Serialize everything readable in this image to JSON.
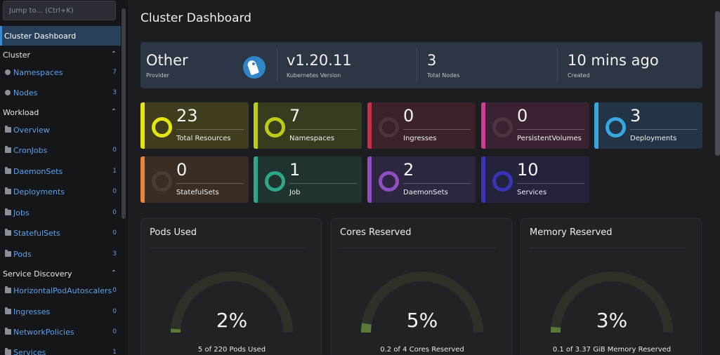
{
  "sidebar": {
    "jump_placeholder": "Jump to... (Ctrl+K)",
    "active_item": "Cluster Dashboard",
    "groups": [
      {
        "label": "Cluster",
        "caret": "⌃"
      },
      {
        "label": "Workload",
        "caret": "⌃"
      },
      {
        "label": "Service Discovery",
        "caret": "⌃"
      }
    ],
    "items": [
      {
        "label": "Namespaces",
        "count": "7",
        "icon": "namespace-icon"
      },
      {
        "label": "Nodes",
        "count": "3",
        "icon": "node-icon"
      },
      {
        "label": "Overview",
        "count": "",
        "icon": "folder-icon"
      },
      {
        "label": "CronJobs",
        "count": "0",
        "icon": "folder-icon"
      },
      {
        "label": "DaemonSets",
        "count": "1",
        "icon": "folder-icon"
      },
      {
        "label": "Deployments",
        "count": "0",
        "icon": "folder-icon"
      },
      {
        "label": "Jobs",
        "count": "0",
        "icon": "folder-icon"
      },
      {
        "label": "StatefulSets",
        "count": "0",
        "icon": "folder-icon"
      },
      {
        "label": "Pods",
        "count": "3",
        "icon": "folder-icon"
      },
      {
        "label": "HorizontalPodAutoscalers",
        "count": "0",
        "icon": "folder-icon"
      },
      {
        "label": "Ingresses",
        "count": "0",
        "icon": "folder-icon"
      },
      {
        "label": "NetworkPolicies",
        "count": "0",
        "icon": "folder-icon"
      },
      {
        "label": "Services",
        "count": "1",
        "icon": "folder-icon"
      }
    ]
  },
  "main": {
    "title": "Cluster Dashboard",
    "info": [
      {
        "value": "Other",
        "label": "Provider"
      },
      {
        "value": "v1.20.11",
        "label": "Kubernetes Version"
      },
      {
        "value": "3",
        "label": "Total Nodes"
      },
      {
        "value": "10 mins ago",
        "label": "Created"
      }
    ],
    "cards": [
      {
        "value": "23",
        "label": "Total Resources",
        "color": "#e4e40f",
        "bg": "#3f3d1e",
        "ring": "#e4e40f"
      },
      {
        "value": "7",
        "label": "Namespaces",
        "color": "#bccc17",
        "bg": "#363d1e",
        "ring": "#bccc17"
      },
      {
        "value": "0",
        "label": "Ingresses",
        "color": "#c8304a",
        "bg": "#3a2228",
        "ring": "#4a3538"
      },
      {
        "value": "0",
        "label": "PersistentVolumes",
        "color": "#d13c97",
        "bg": "#3a2232",
        "ring": "#4a3540"
      },
      {
        "value": "3",
        "label": "Deployments",
        "color": "#3aa6e0",
        "bg": "#223446",
        "ring": "#3aa6e0"
      },
      {
        "value": "0",
        "label": "StatefulSets",
        "color": "#e6843c",
        "bg": "#3a2e24",
        "ring": "#4a3e34"
      },
      {
        "value": "1",
        "label": "Job",
        "color": "#2fa58a",
        "bg": "#1f3430",
        "ring": "#2fa58a"
      },
      {
        "value": "2",
        "label": "DaemonSets",
        "color": "#8e4fc4",
        "bg": "#2e2640",
        "ring": "#8e4fc4"
      },
      {
        "value": "10",
        "label": "Services",
        "color": "#3b33b8",
        "bg": "#24233e",
        "ring": "#3b33b8"
      }
    ],
    "gauges": [
      {
        "title": "Pods Used",
        "percent": "2%",
        "fraction": 0.02,
        "caption": "5 of 220 Pods Used"
      },
      {
        "title": "Cores Reserved",
        "percent": "5%",
        "fraction": 0.05,
        "caption": "0.2 of 4 Cores Reserved"
      },
      {
        "title": "Memory Reserved",
        "percent": "3%",
        "fraction": 0.03,
        "caption": "0.1 of 3.37 GiB Memory Reserved"
      }
    ],
    "gauge_track_color": "#2e3128",
    "gauge_fill_color": "#5a7a3a"
  }
}
